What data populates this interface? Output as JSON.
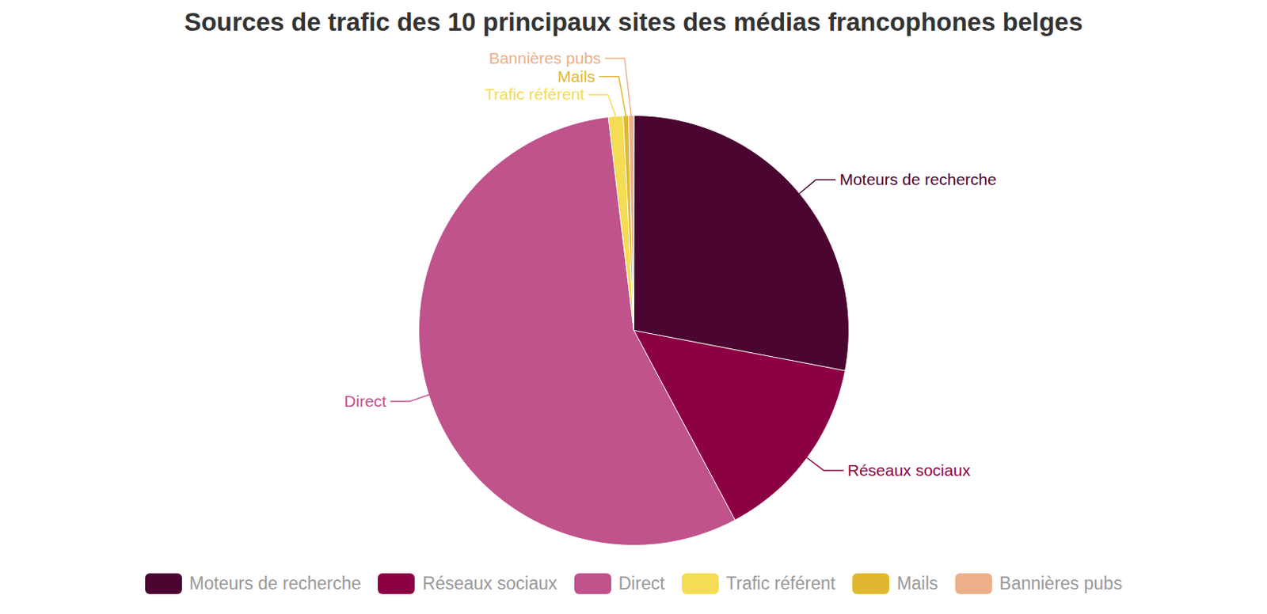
{
  "chart_data": {
    "type": "pie",
    "title": "Sources de trafic des 10 principaux sites des médias francophones belges",
    "categories": [
      "Moteurs de recherche",
      "Réseaux sociaux",
      "Direct",
      "Trafic référent",
      "Mails",
      "Bannières pubs"
    ],
    "values": [
      28,
      14.2,
      55.9,
      1.1,
      0.4,
      0.4
    ],
    "colors": [
      "#4a0530",
      "#8c0044",
      "#c0528c",
      "#f5dc55",
      "#e0b830",
      "#ebb08a"
    ],
    "legend": "bottom"
  }
}
